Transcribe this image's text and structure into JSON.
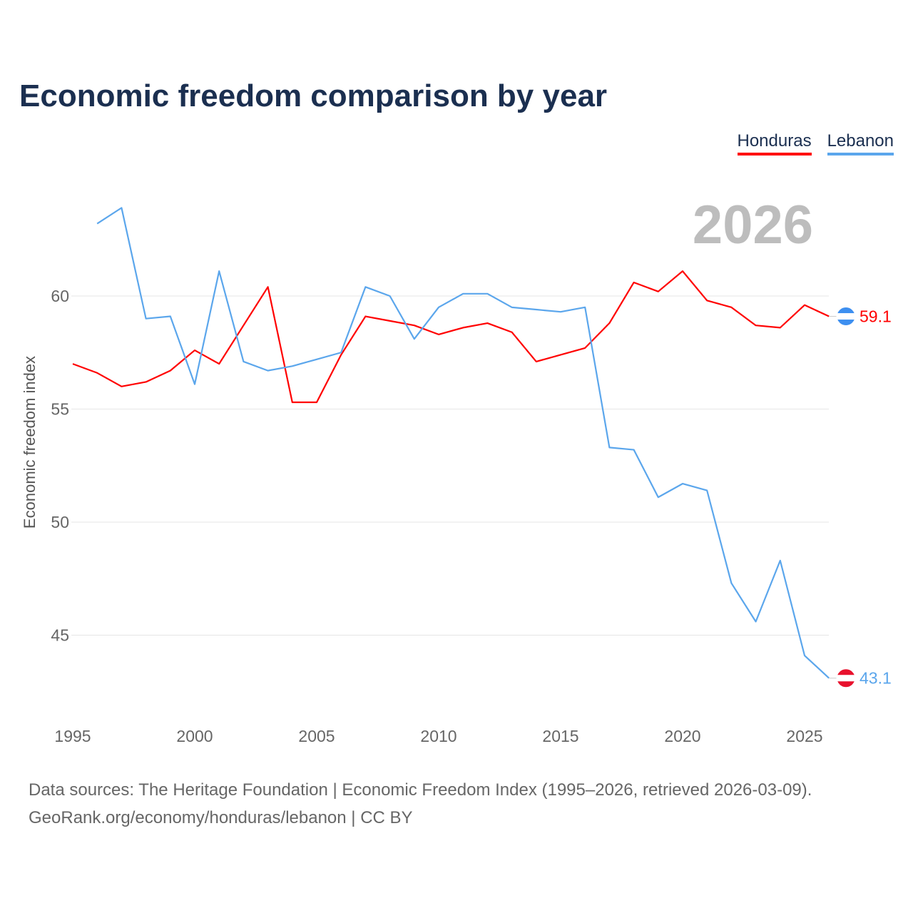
{
  "chart_data": {
    "type": "line",
    "title": "Economic freedom comparison by year",
    "ylabel": "Economic freedom index",
    "xlabel": "",
    "year_label": "2026",
    "ylim": [
      41.5,
      64.5
    ],
    "xlim": [
      1995,
      2026
    ],
    "yticks": [
      45,
      50,
      55,
      60
    ],
    "xticks": [
      1995,
      2000,
      2005,
      2010,
      2015,
      2020,
      2025
    ],
    "grid": true,
    "legend_position": "top-right",
    "series": [
      {
        "name": "Honduras",
        "color": "#ff0000",
        "end_label": "59.1",
        "x": [
          1995,
          1996,
          1997,
          1998,
          1999,
          2000,
          2001,
          2002,
          2003,
          2004,
          2005,
          2006,
          2007,
          2008,
          2009,
          2010,
          2011,
          2012,
          2013,
          2014,
          2015,
          2016,
          2017,
          2018,
          2019,
          2020,
          2021,
          2022,
          2023,
          2024,
          2025,
          2026
        ],
        "values": [
          57.0,
          56.6,
          56.0,
          56.2,
          56.7,
          57.6,
          57.0,
          58.7,
          60.4,
          55.3,
          55.3,
          57.4,
          59.1,
          58.9,
          58.7,
          58.3,
          58.6,
          58.8,
          58.4,
          57.1,
          57.4,
          57.7,
          58.8,
          60.6,
          60.2,
          61.1,
          59.8,
          59.5,
          58.7,
          58.6,
          59.6,
          59.1
        ]
      },
      {
        "name": "Lebanon",
        "color": "#5ba6ec",
        "end_label": "43.1",
        "x": [
          1996,
          1997,
          1998,
          1999,
          2000,
          2001,
          2002,
          2003,
          2004,
          2005,
          2006,
          2007,
          2008,
          2009,
          2010,
          2011,
          2012,
          2013,
          2014,
          2015,
          2016,
          2017,
          2018,
          2019,
          2020,
          2021,
          2022,
          2023,
          2024,
          2025,
          2026
        ],
        "values": [
          63.2,
          63.9,
          59.0,
          59.1,
          56.1,
          61.1,
          57.1,
          56.7,
          56.9,
          57.2,
          57.5,
          60.4,
          60.0,
          58.1,
          59.5,
          60.1,
          60.1,
          59.5,
          59.4,
          59.3,
          59.5,
          53.3,
          53.2,
          51.1,
          51.7,
          51.4,
          47.3,
          45.6,
          48.3,
          44.1,
          43.1
        ]
      }
    ],
    "source_lines": [
      "Data sources: The Heritage Foundation | Economic Freedom Index (1995–2026, retrieved 2026-03-09).",
      "GeoRank.org/economy/honduras/lebanon | CC BY"
    ]
  }
}
